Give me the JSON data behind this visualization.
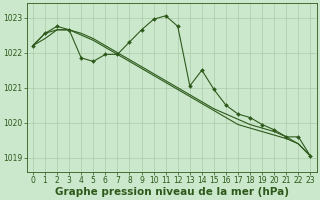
{
  "hours": [
    0,
    1,
    2,
    3,
    4,
    5,
    6,
    7,
    8,
    9,
    10,
    11,
    12,
    13,
    14,
    15,
    16,
    17,
    18,
    19,
    20,
    21,
    22,
    23
  ],
  "y_jagged": [
    1022.2,
    1022.55,
    1022.75,
    1022.65,
    1021.85,
    1021.75,
    1021.95,
    1021.95,
    1022.3,
    1022.65,
    1022.95,
    1023.05,
    1022.75,
    1021.05,
    1021.5,
    1020.95,
    1020.5,
    1020.25,
    1020.15,
    1019.95,
    1019.8,
    1019.6,
    1019.6,
    1019.05
  ],
  "y_line2": [
    1022.2,
    1022.55,
    1022.65,
    1022.65,
    1022.5,
    1022.35,
    1022.15,
    1021.95,
    1021.75,
    1021.55,
    1021.35,
    1021.15,
    1020.95,
    1020.75,
    1020.55,
    1020.35,
    1020.15,
    1019.95,
    1019.85,
    1019.75,
    1019.65,
    1019.55,
    1019.4,
    1019.05
  ],
  "y_line3": [
    1022.2,
    1022.4,
    1022.65,
    1022.65,
    1022.55,
    1022.4,
    1022.2,
    1022.0,
    1021.8,
    1021.6,
    1021.4,
    1021.2,
    1021.0,
    1020.8,
    1020.6,
    1020.4,
    1020.25,
    1020.1,
    1019.95,
    1019.85,
    1019.75,
    1019.6,
    1019.4,
    1019.05
  ],
  "bg_color": "#cce8cc",
  "grid_color": "#aaccaa",
  "line_color": "#2d5a1b",
  "xlabel": "Graphe pression niveau de la mer (hPa)",
  "ylim": [
    1018.6,
    1023.4
  ],
  "xlim": [
    -0.5,
    23.5
  ],
  "yticks": [
    1019,
    1020,
    1021,
    1022,
    1023
  ],
  "xticks": [
    0,
    1,
    2,
    3,
    4,
    5,
    6,
    7,
    8,
    9,
    10,
    11,
    12,
    13,
    14,
    15,
    16,
    17,
    18,
    19,
    20,
    21,
    22,
    23
  ],
  "tick_fontsize": 5.5,
  "xlabel_fontsize": 7.5
}
